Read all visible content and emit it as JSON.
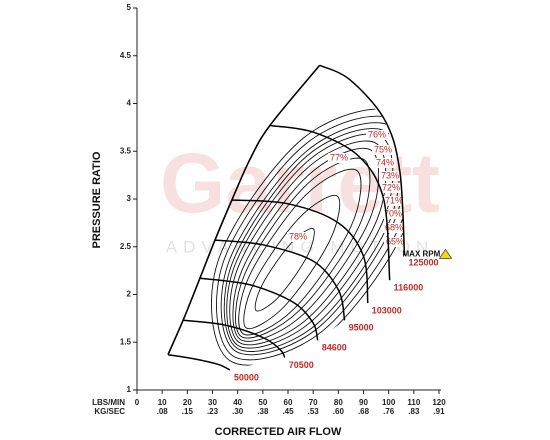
{
  "chart_data": {
    "type": "compressor-map",
    "x_label": "CORRECTED AIR FLOW",
    "y_label": "PRESSURE RATIO",
    "x_unit_label": "LBS/MIN",
    "x2_unit_label": "KG/SEC",
    "xlim": [
      0,
      120
    ],
    "xticks": [
      0,
      10,
      20,
      30,
      40,
      50,
      60,
      70,
      80,
      90,
      100,
      110,
      120
    ],
    "x2lim": [
      0,
      0.9072
    ],
    "x2ticks": [
      {
        "value": 0.0756,
        "label": ".08"
      },
      {
        "value": 0.1512,
        "label": ".15"
      },
      {
        "value": 0.2268,
        "label": ".23"
      },
      {
        "value": 0.3024,
        "label": ".30"
      },
      {
        "value": 0.378,
        "label": ".38"
      },
      {
        "value": 0.4536,
        "label": ".45"
      },
      {
        "value": 0.5292,
        "label": ".53"
      },
      {
        "value": 0.6048,
        "label": ".60"
      },
      {
        "value": 0.6804,
        "label": ".68"
      },
      {
        "value": 0.756,
        "label": ".76"
      },
      {
        "value": 0.8316,
        "label": ".83"
      },
      {
        "value": 0.9072,
        "label": ".91"
      }
    ],
    "ylim": [
      1,
      5
    ],
    "yticks": [
      1,
      1.5,
      2,
      2.5,
      3,
      3.5,
      4,
      4.5,
      5
    ],
    "surge_line": {
      "x": [
        12.3,
        18.3,
        25.0,
        31.0,
        37.7,
        44.8,
        52.8,
        72.6
      ],
      "y": [
        1.37,
        1.73,
        2.17,
        2.57,
        2.99,
        3.41,
        3.77,
        4.4
      ]
    },
    "max_rpm_label": "MAX RPM",
    "speed_lines": [
      {
        "rpm": 125000,
        "x": [
          72.6,
          84.5,
          98.4,
          104.4,
          106.3
        ],
        "y": [
          4.4,
          4.25,
          3.83,
          3.3,
          2.41
        ]
      },
      {
        "rpm": 116000,
        "x": [
          52.8,
          70,
          88,
          98,
          100.4
        ],
        "y": [
          3.77,
          3.7,
          3.45,
          3.0,
          2.15
        ]
      },
      {
        "rpm": 103000,
        "x": [
          37.7,
          60,
          80,
          90,
          91.7
        ],
        "y": [
          2.99,
          2.95,
          2.75,
          2.4,
          1.91
        ]
      },
      {
        "rpm": 95000,
        "x": [
          31.0,
          50,
          70,
          80,
          82.5
        ],
        "y": [
          2.57,
          2.52,
          2.35,
          2.05,
          1.73
        ]
      },
      {
        "rpm": 84600,
        "x": [
          25.0,
          45,
          62,
          70,
          71.8
        ],
        "y": [
          2.17,
          2.1,
          1.92,
          1.7,
          1.52
        ]
      },
      {
        "rpm": 70500,
        "x": [
          18.3,
          35,
          50,
          57,
          58.7
        ],
        "y": [
          1.73,
          1.68,
          1.55,
          1.42,
          1.34
        ]
      },
      {
        "rpm": 50000,
        "x": [
          12.3,
          22,
          32,
          36.9
        ],
        "y": [
          1.37,
          1.33,
          1.27,
          1.21
        ]
      }
    ],
    "efficiency_islands": [
      {
        "label": "78%",
        "x": [
          70.0,
          67.8,
          56.5,
          47.4,
          49.7,
          61.0
        ],
        "y": [
          2.69,
          2.41,
          1.98,
          1.83,
          2.1,
          2.53
        ]
      },
      {
        "label": "77%",
        "x": [
          79.6,
          76.7,
          58.7,
          43.4,
          46.3,
          64.4
        ],
        "y": [
          3.03,
          2.57,
          1.88,
          1.65,
          2.11,
          2.8
        ]
      },
      {
        "label": "76%",
        "x": [
          87.3,
          85.0,
          62.4,
          42.1,
          44.4,
          67.0
        ],
        "y": [
          3.3,
          2.71,
          1.85,
          1.59,
          2.18,
          3.04
        ]
      },
      {
        "label": "75%",
        "x": [
          90.3,
          88.8,
          64.4,
          41.4,
          42.9,
          67.4
        ],
        "y": [
          3.41,
          2.75,
          1.83,
          1.56,
          2.22,
          3.15
        ]
      },
      {
        "label": "74%",
        "x": [
          93.1,
          92.5,
          66.4,
          41.0,
          41.7,
          67.7
        ],
        "y": [
          3.51,
          2.79,
          1.8,
          1.53,
          2.25,
          3.24
        ]
      },
      {
        "label": "73%",
        "x": [
          95.2,
          95.6,
          68.3,
          40.5,
          40.1,
          67.5
        ],
        "y": [
          3.58,
          2.8,
          1.76,
          1.5,
          2.28,
          3.32
        ]
      },
      {
        "label": "72%",
        "x": [
          97.4,
          98.5,
          69.8,
          39.9,
          38.8,
          67.5
        ],
        "y": [
          3.65,
          2.82,
          1.73,
          1.47,
          2.3,
          3.39
        ]
      },
      {
        "label": "71%",
        "x": [
          99.3,
          101.3,
          71.4,
          39.6,
          37.6,
          67.5
        ],
        "y": [
          3.7,
          2.83,
          1.69,
          1.44,
          2.31,
          3.45
        ]
      },
      {
        "label": "70%",
        "x": [
          100.8,
          103.3,
          72.4,
          38.9,
          36.3,
          67.3
        ],
        "y": [
          3.76,
          2.84,
          1.66,
          1.41,
          2.33,
          3.5
        ]
      },
      {
        "label": "68%",
        "x": [
          102.6,
          106.2,
          73.8,
          37.9,
          34.3,
          66.7
        ],
        "y": [
          3.82,
          2.84,
          1.62,
          1.36,
          2.34,
          3.57
        ]
      },
      {
        "label": "65%",
        "x": [
          104.6,
          109.0,
          75.1,
          36.7,
          32.2,
          66.2
        ],
        "y": [
          3.89,
          2.85,
          1.57,
          1.31,
          2.35,
          3.64
        ]
      }
    ],
    "watermark": {
      "brand": "Garrett",
      "tagline": "ADVANCING MOTION"
    }
  }
}
